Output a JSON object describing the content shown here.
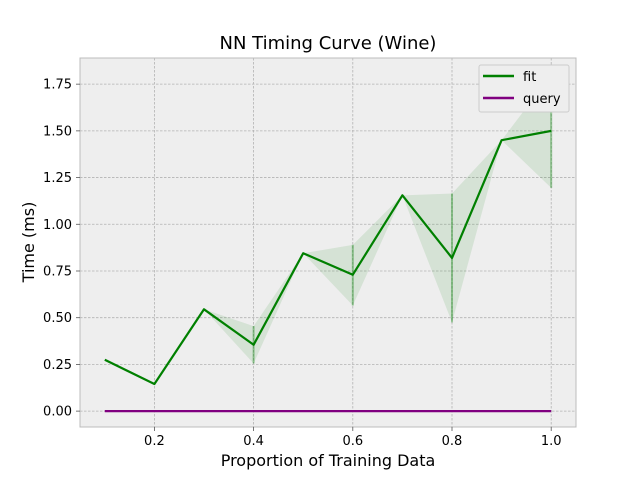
{
  "chart_data": {
    "type": "line",
    "title": "NN Timing Curve (Wine)",
    "xlabel": "Proportion of Training Data",
    "ylabel": "Time (ms)",
    "x": [
      0.1,
      0.2,
      0.3,
      0.4,
      0.5,
      0.6,
      0.7,
      0.8,
      0.9,
      1.0
    ],
    "xlim": [
      0.05,
      1.05
    ],
    "ylim": [
      -0.085,
      1.89
    ],
    "xticks": [
      0.2,
      0.4,
      0.6,
      0.8,
      1.0
    ],
    "xtick_labels": [
      "0.2",
      "0.4",
      "0.6",
      "0.8",
      "1.0"
    ],
    "yticks": [
      0.0,
      0.25,
      0.5,
      0.75,
      1.0,
      1.25,
      1.5,
      1.75
    ],
    "ytick_labels": [
      "0.00",
      "0.25",
      "0.50",
      "0.75",
      "1.00",
      "1.25",
      "1.50",
      "1.75"
    ],
    "grid": true,
    "legend_position": "top-right",
    "series": [
      {
        "name": "fit",
        "color": "#008000",
        "values": [
          0.275,
          0.145,
          0.545,
          0.355,
          0.845,
          0.73,
          1.155,
          0.82,
          1.45,
          1.5
        ],
        "band_lower": [
          0.275,
          0.145,
          0.545,
          0.255,
          0.845,
          0.565,
          1.155,
          0.475,
          1.45,
          1.195
        ],
        "band_upper": [
          0.275,
          0.145,
          0.545,
          0.455,
          0.845,
          0.89,
          1.155,
          1.165,
          1.45,
          1.8
        ]
      },
      {
        "name": "query",
        "color": "#800080",
        "values": [
          0,
          0,
          0,
          0,
          0,
          0,
          0,
          0,
          0,
          0
        ],
        "band_lower": [
          0,
          0,
          0,
          0,
          0,
          0,
          0,
          0,
          0,
          0
        ],
        "band_upper": [
          0,
          0,
          0,
          0,
          0,
          0,
          0,
          0,
          0,
          0
        ]
      }
    ]
  }
}
